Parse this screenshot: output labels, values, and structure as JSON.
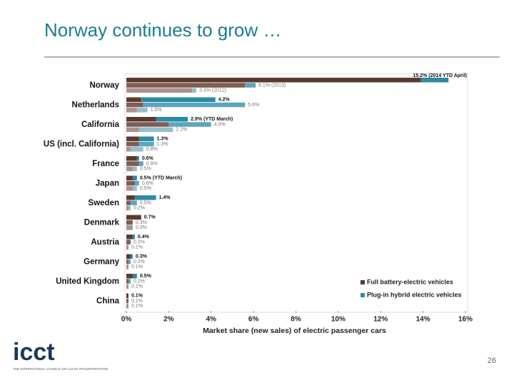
{
  "header": {
    "title": "Norway continues to grow …"
  },
  "chart_data": {
    "type": "bar",
    "orientation": "horizontal",
    "categories": [
      "Norway",
      "Netherlands",
      "California",
      "US (incl. California)",
      "France",
      "Japan",
      "Sweden",
      "Denmark",
      "Austria",
      "Germany",
      "United Kingdom",
      "China"
    ],
    "series": [
      {
        "name": "Full battery-electric vehicles",
        "color": "#5b3a2e",
        "colors": [
          "#5b3a2e",
          "#7d5e54",
          "#a8938c"
        ],
        "values": [
          [
            13.9,
            5.6,
            3.1
          ],
          [
            0.7,
            0.8,
            0.5
          ],
          [
            1.4,
            2.0,
            0.6
          ],
          [
            0.6,
            0.6,
            0.2
          ],
          [
            0.5,
            0.6,
            0.3
          ],
          [
            0.3,
            0.4,
            0.3
          ],
          [
            0.4,
            0.2,
            0.1
          ],
          [
            0.7,
            0.3,
            0.3
          ],
          [
            0.3,
            0.2,
            0.1
          ],
          [
            0.2,
            0.1,
            0.1
          ],
          [
            0.3,
            0.1,
            0.1
          ],
          [
            0.1,
            0.1,
            0.1
          ]
        ]
      },
      {
        "name": "Plug-in hybrid electric vehicles",
        "color": "#2c8aa6",
        "colors": [
          "#2c8aa6",
          "#5ca6bc",
          "#95bfcd"
        ],
        "values": [
          [
            1.3,
            0.5,
            0.2
          ],
          [
            3.5,
            4.8,
            0.5
          ],
          [
            1.5,
            2.0,
            1.6
          ],
          [
            0.7,
            0.7,
            0.6
          ],
          [
            0.1,
            0.2,
            0.2
          ],
          [
            0.2,
            0.2,
            0.2
          ],
          [
            1.0,
            0.3,
            0.1
          ],
          [
            0,
            0,
            0
          ],
          [
            0.1,
            0,
            0
          ],
          [
            0.1,
            0.1,
            0
          ],
          [
            0.2,
            0.1,
            0
          ],
          [
            0,
            0,
            0
          ]
        ]
      }
    ],
    "bar_labels": [
      [
        "15.2% (2014 YTD April)",
        "6.1% (2013)",
        "3.3% (2012)"
      ],
      [
        "4.2%",
        "5.6%",
        "1.0%"
      ],
      [
        "2.9% (YTD March)",
        "4.0%",
        "2.2%"
      ],
      [
        "1.3%",
        "1.3%",
        "0.8%"
      ],
      [
        "0.6%",
        "0.8%",
        "0.5%"
      ],
      [
        "0.5% (YTD March)",
        "0.6%",
        "0.5%"
      ],
      [
        "1.4%",
        "0.5%",
        "0.2%"
      ],
      [
        "0.7%",
        "0.3%",
        "0.3%"
      ],
      [
        "0.4%",
        "0.2%",
        "0.1%"
      ],
      [
        "0.3%",
        "0.2%",
        "0.1%"
      ],
      [
        "0.5%",
        "0.2%",
        "0.1%"
      ],
      [
        "0.1%",
        "0.1%",
        "0.1%"
      ]
    ],
    "xlabel": "Market share (new sales) of electric passenger cars",
    "xlim": [
      0,
      16
    ],
    "xticks": [
      {
        "value": 0,
        "label": "0%"
      },
      {
        "value": 2,
        "label": "2%"
      },
      {
        "value": 4,
        "label": "4%"
      },
      {
        "value": 6,
        "label": "6%"
      },
      {
        "value": 8,
        "label": "8%"
      },
      {
        "value": 10,
        "label": "10%"
      },
      {
        "value": 12,
        "label": "12%"
      },
      {
        "value": 14,
        "label": "14%"
      },
      {
        "value": 16,
        "label": "16%"
      }
    ],
    "legend": "lower right"
  },
  "footer": {
    "logo": "icct",
    "logo_subtitle": "THE INTERNATIONAL COUNCIL ON CLEAN TRANSPORTATION",
    "page_number": "26"
  }
}
